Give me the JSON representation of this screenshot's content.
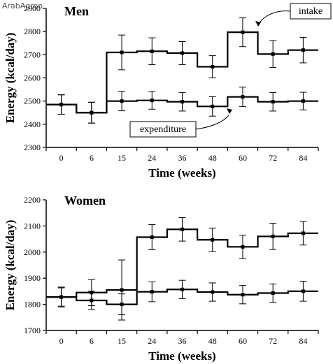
{
  "watermark": "ArabAgron",
  "chart_data": [
    {
      "type": "line",
      "title": "Men",
      "xlabel": "Time (weeks)",
      "ylabel": "Energy (kcal/day)",
      "categories": [
        "0",
        "6",
        "15",
        "24",
        "36",
        "48",
        "60",
        "72",
        "84"
      ],
      "ylim": [
        2300,
        2900
      ],
      "yticks": [
        2300,
        2400,
        2500,
        2600,
        2700,
        2800,
        2900
      ],
      "series": [
        {
          "name": "intake",
          "values": [
            2485,
            2450,
            2710,
            2715,
            2707,
            2648,
            2797,
            2703,
            2720
          ],
          "error": [
            42,
            45,
            75,
            58,
            50,
            48,
            62,
            58,
            55
          ]
        },
        {
          "name": "expenditure",
          "values": [
            2485,
            2450,
            2500,
            2503,
            2497,
            2477,
            2518,
            2497,
            2500
          ],
          "error": [
            42,
            45,
            42,
            38,
            40,
            42,
            42,
            40,
            38
          ]
        }
      ],
      "annotations": [
        "intake",
        "expenditure"
      ]
    },
    {
      "type": "line",
      "title": "Women",
      "xlabel": "Time (weeks)",
      "ylabel": "Energy (kcal/day)",
      "categories": [
        "0",
        "6",
        "15",
        "24",
        "36",
        "48",
        "60",
        "72",
        "84"
      ],
      "ylim": [
        1700,
        2200
      ],
      "yticks": [
        1700,
        1800,
        1900,
        2000,
        2100,
        2200
      ],
      "series": [
        {
          "values": [
            1828,
            1845,
            1855,
            2057,
            2087,
            2047,
            2020,
            2060,
            2072
          ],
          "error": [
            38,
            50,
            115,
            48,
            45,
            45,
            45,
            50,
            45
          ]
        },
        {
          "values": [
            1828,
            1815,
            1800,
            1848,
            1857,
            1847,
            1837,
            1843,
            1850
          ],
          "error": [
            35,
            35,
            40,
            38,
            35,
            35,
            35,
            35,
            38
          ]
        }
      ]
    }
  ]
}
